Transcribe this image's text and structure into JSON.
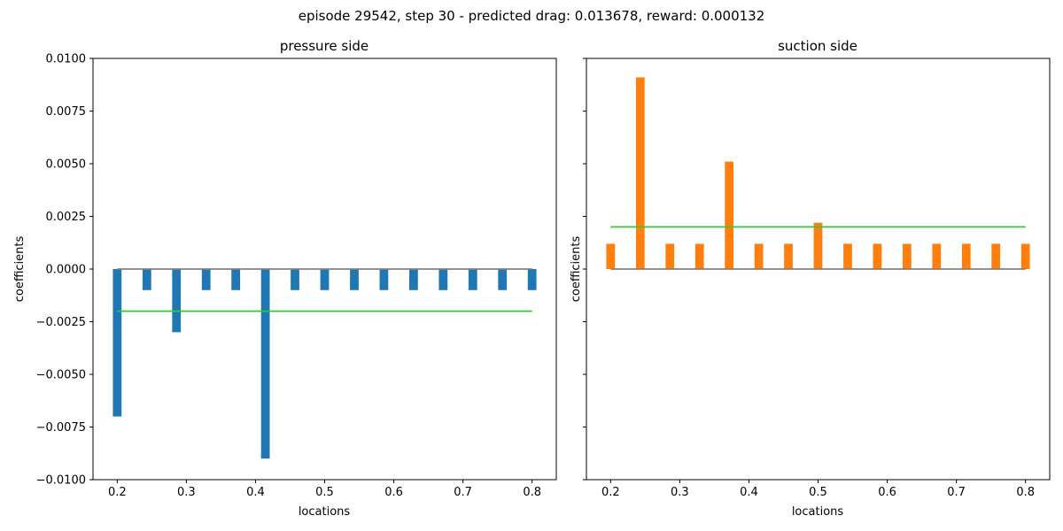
{
  "figure": {
    "title": "episode 29542, step 30 - predicted drag: 0.013678, reward: 0.000132"
  },
  "chart_data": [
    {
      "type": "bar",
      "title": "pressure side",
      "xlabel": "locations",
      "ylabel": "coefficients",
      "ylim": [
        -0.01,
        0.01
      ],
      "xlim": [
        0.165,
        0.835
      ],
      "xticks": [
        0.2,
        0.3,
        0.4,
        0.5,
        0.6,
        0.7,
        0.8
      ],
      "xtick_labels": [
        "0.2",
        "0.3",
        "0.4",
        "0.5",
        "0.6",
        "0.7",
        "0.8"
      ],
      "yticks": [
        0.01,
        0.0075,
        0.005,
        0.0025,
        0,
        -0.0025,
        -0.005,
        -0.0075,
        -0.01
      ],
      "ytick_labels": [
        "0.0100",
        "0.0075",
        "0.0050",
        "0.0025",
        "0.0000",
        "−0.0025",
        "−0.0050",
        "−0.0075",
        "−0.0100"
      ],
      "show_yticklabels": true,
      "bar_color": "#1f77b4",
      "bar_width": 0.0125,
      "x": [
        0.2,
        0.2429,
        0.2857,
        0.3286,
        0.3714,
        0.4143,
        0.4571,
        0.5,
        0.5429,
        0.5857,
        0.6286,
        0.6714,
        0.7143,
        0.7571,
        0.8
      ],
      "values": [
        -0.007,
        -0.001,
        -0.003,
        -0.001,
        -0.001,
        -0.009,
        -0.001,
        -0.001,
        -0.001,
        -0.001,
        -0.001,
        -0.001,
        -0.001,
        -0.001,
        -0.001
      ],
      "lines": [
        {
          "y": 0,
          "x_range": [
            0.2,
            0.8
          ],
          "color": "#808080"
        },
        {
          "y": -0.002,
          "x_range": [
            0.2,
            0.8
          ],
          "color": "#2ecc2e"
        }
      ]
    },
    {
      "type": "bar",
      "title": "suction side",
      "xlabel": "locations",
      "ylabel": "coefficients",
      "ylim": [
        -0.01,
        0.01
      ],
      "xlim": [
        0.165,
        0.835
      ],
      "xticks": [
        0.2,
        0.3,
        0.4,
        0.5,
        0.6,
        0.7,
        0.8
      ],
      "xtick_labels": [
        "0.2",
        "0.3",
        "0.4",
        "0.5",
        "0.6",
        "0.7",
        "0.8"
      ],
      "yticks": [
        0.01,
        0.0075,
        0.005,
        0.0025,
        0,
        -0.0025,
        -0.005,
        -0.0075,
        -0.01
      ],
      "ytick_labels": [],
      "show_yticklabels": false,
      "bar_color": "#ff7f0e",
      "bar_width": 0.0125,
      "x": [
        0.2,
        0.2429,
        0.2857,
        0.3286,
        0.3714,
        0.4143,
        0.4571,
        0.5,
        0.5429,
        0.5857,
        0.6286,
        0.6714,
        0.7143,
        0.7571,
        0.8
      ],
      "values": [
        0.0012,
        0.0091,
        0.0012,
        0.0012,
        0.0051,
        0.0012,
        0.0012,
        0.0022,
        0.0012,
        0.0012,
        0.0012,
        0.0012,
        0.0012,
        0.0012,
        0.0012
      ],
      "lines": [
        {
          "y": 0,
          "x_range": [
            0.2,
            0.8
          ],
          "color": "#808080"
        },
        {
          "y": 0.002,
          "x_range": [
            0.2,
            0.8
          ],
          "color": "#2ecc2e"
        }
      ]
    }
  ]
}
